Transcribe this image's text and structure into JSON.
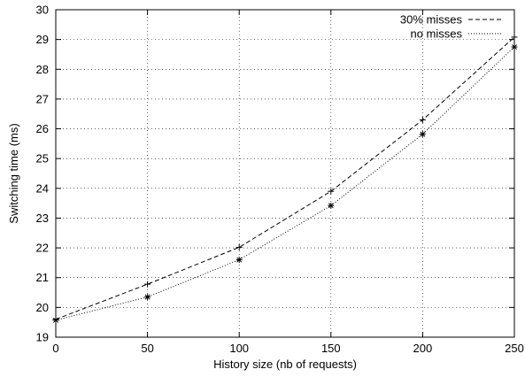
{
  "chart_data": {
    "type": "line",
    "title": "",
    "xlabel": "History size (nb of requests)",
    "ylabel": "Switching time (ms)",
    "xlim": [
      0,
      250
    ],
    "ylim": [
      19,
      30
    ],
    "xticks": [
      0,
      50,
      100,
      150,
      200,
      250
    ],
    "yticks": [
      19,
      20,
      21,
      22,
      23,
      24,
      25,
      26,
      27,
      28,
      29,
      30
    ],
    "grid": true,
    "legend_position": "top-right",
    "series": [
      {
        "name": "30% misses",
        "line_style": "dashed",
        "color": "#000000",
        "marker": "plus",
        "x": [
          0,
          50,
          100,
          150,
          200,
          250
        ],
        "y": [
          19.6,
          20.78,
          22.02,
          23.9,
          26.3,
          29.08
        ]
      },
      {
        "name": "no misses",
        "line_style": "dotted",
        "color": "#000000",
        "marker": "star",
        "x": [
          0,
          50,
          100,
          150,
          200,
          250
        ],
        "y": [
          19.57,
          20.35,
          21.6,
          23.42,
          25.82,
          28.75
        ]
      }
    ]
  }
}
